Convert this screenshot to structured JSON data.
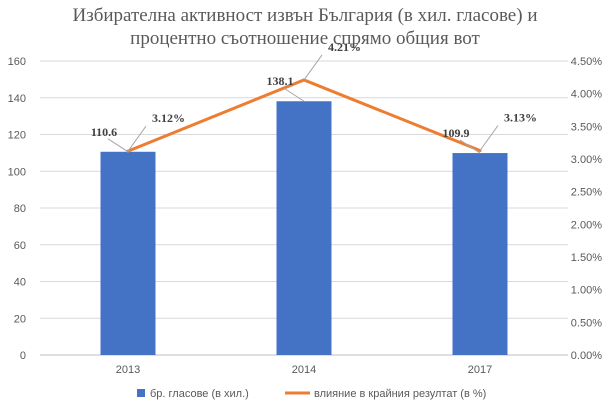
{
  "chart_data": {
    "type": "bar",
    "title_lines": [
      "Избирателна активност извън България (в хил. гласове) и",
      "процентно съотношение спрямо общия вот"
    ],
    "categories": [
      "2013",
      "2014",
      "2017"
    ],
    "series": [
      {
        "name": "бр. гласове (в хил.)",
        "type": "bar",
        "axis": "left",
        "values": [
          110.6,
          138.1,
          109.9
        ],
        "labels": [
          "110.6",
          "138.1",
          "109.9"
        ],
        "color": "#4472C4"
      },
      {
        "name": "влияние в крайния резултат (в %)",
        "type": "line",
        "axis": "right",
        "values": [
          3.12,
          4.21,
          3.13
        ],
        "labels": [
          "3.12%",
          "4.21%",
          "3.13%"
        ],
        "color": "#ED7D31"
      }
    ],
    "y_left": {
      "min": 0,
      "max": 160,
      "ticks": [
        "0",
        "20",
        "40",
        "60",
        "80",
        "100",
        "120",
        "140",
        "160"
      ]
    },
    "y_right": {
      "min": 0,
      "max": 4.5,
      "ticks": [
        "0.00%",
        "0.50%",
        "1.00%",
        "1.50%",
        "2.00%",
        "2.50%",
        "3.00%",
        "3.50%",
        "4.00%",
        "4.50%"
      ]
    },
    "grid": true,
    "legend_position": "bottom"
  }
}
